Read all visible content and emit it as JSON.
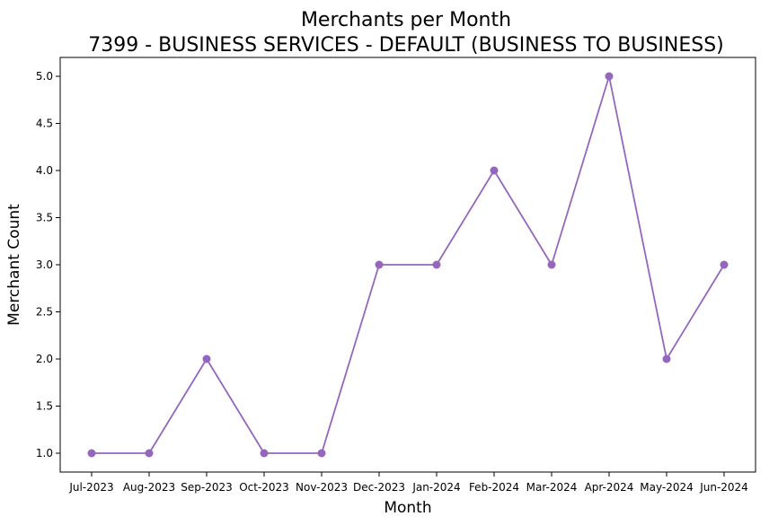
{
  "chart_data": {
    "type": "line",
    "title": "Merchants per Month",
    "subtitle": "7399 - BUSINESS SERVICES - DEFAULT (BUSINESS TO BUSINESS)",
    "xlabel": "Month",
    "ylabel": "Merchant Count",
    "categories": [
      "Jul-2023",
      "Aug-2023",
      "Sep-2023",
      "Oct-2023",
      "Nov-2023",
      "Dec-2023",
      "Jan-2024",
      "Feb-2024",
      "Mar-2024",
      "Apr-2024",
      "May-2024",
      "Jun-2024"
    ],
    "series": [
      {
        "values": [
          1,
          1,
          2,
          1,
          1,
          3,
          3,
          4,
          3,
          5,
          2,
          3
        ],
        "color": "#9467bd",
        "marker": "circle"
      }
    ],
    "ylim": [
      0.8,
      5.2
    ],
    "yticks": [
      "1.0",
      "1.5",
      "2.0",
      "2.5",
      "3.0",
      "3.5",
      "4.0",
      "4.5",
      "5.0"
    ],
    "grid": false,
    "legend": false
  }
}
